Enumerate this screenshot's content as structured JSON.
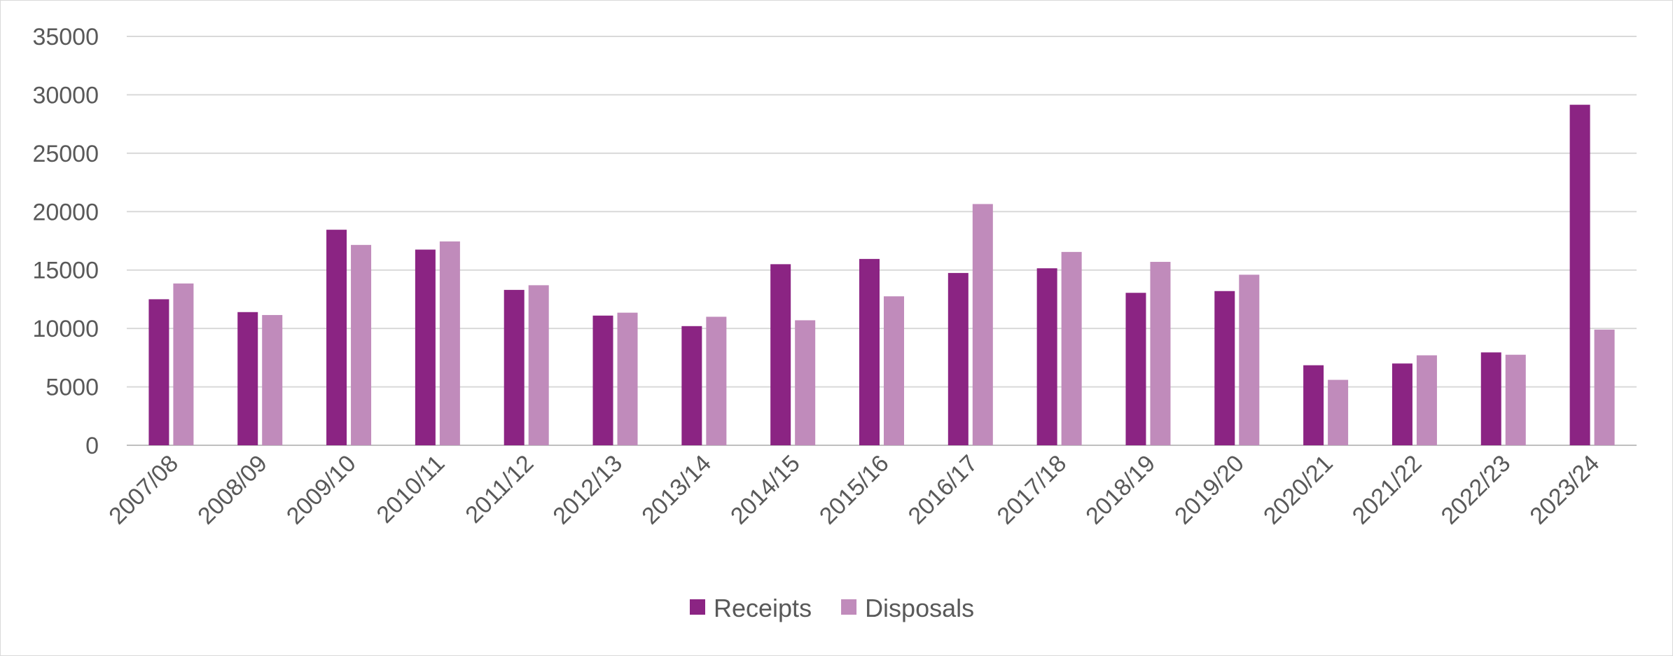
{
  "chart_data": {
    "type": "bar",
    "title": "",
    "xlabel": "",
    "ylabel": "",
    "ylim": [
      0,
      35000
    ],
    "yticks": [
      0,
      5000,
      10000,
      15000,
      20000,
      25000,
      30000,
      35000
    ],
    "grid": true,
    "legend_position": "bottom",
    "categories": [
      "2007/08",
      "2008/09",
      "2009/10",
      "2010/11",
      "2011/12",
      "2012/13",
      "2013/14",
      "2014/15",
      "2015/16",
      "2016/17",
      "2017/18",
      "2018/19",
      "2019/20",
      "2020/21",
      "2021/22",
      "2022/23",
      "2023/24"
    ],
    "series": [
      {
        "name": "Receipts",
        "color": "#8b2483",
        "values": [
          12500,
          11400,
          18450,
          16750,
          13300,
          11100,
          10200,
          15500,
          15950,
          14750,
          15150,
          13050,
          13200,
          6850,
          7000,
          7950,
          29150
        ]
      },
      {
        "name": "Disposals",
        "color": "#c08bbb",
        "values": [
          13850,
          11150,
          17150,
          17450,
          13700,
          11350,
          11000,
          10700,
          12750,
          20650,
          16550,
          15700,
          14600,
          5600,
          7700,
          7750,
          9900
        ]
      }
    ]
  }
}
